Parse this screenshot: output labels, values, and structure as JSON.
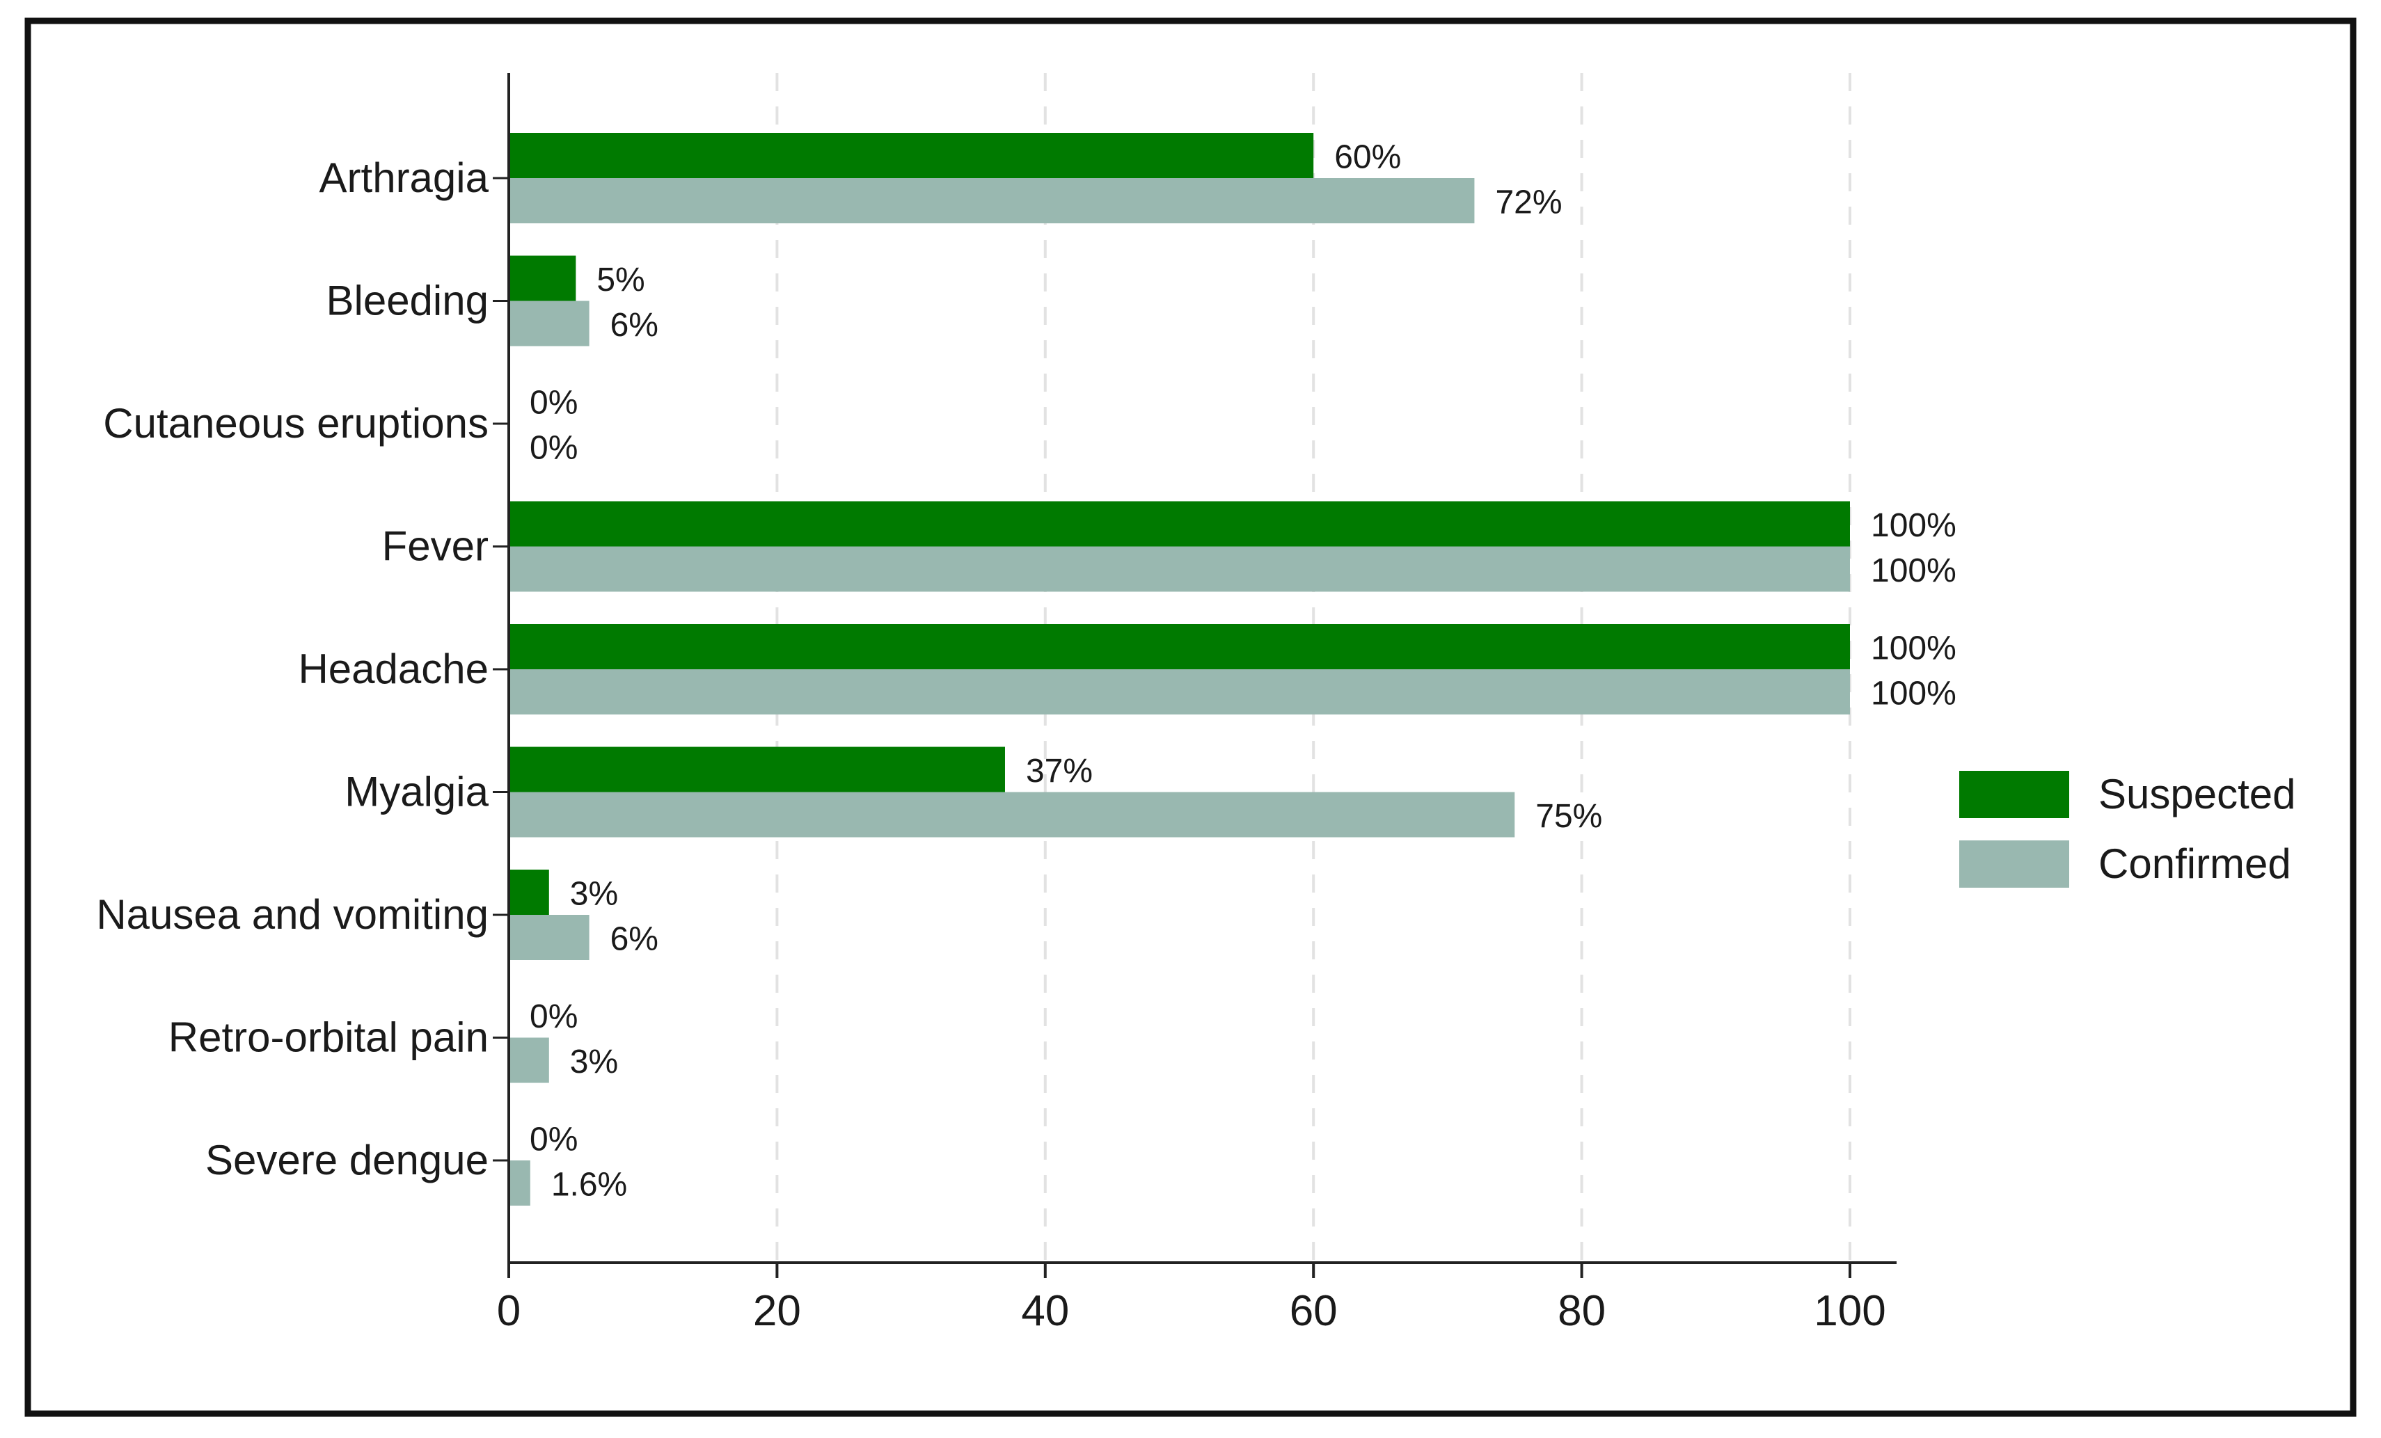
{
  "chart_data": {
    "type": "bar",
    "orientation": "horizontal",
    "categories": [
      "Arthragia",
      "Bleeding",
      "Cutaneous eruptions",
      "Fever",
      "Headache",
      "Myalgia",
      "Nausea and vomiting",
      "Retro-orbital pain",
      "Severe dengue"
    ],
    "series": [
      {
        "name": "Suspected",
        "color": "#007a00",
        "values": [
          60,
          5,
          0,
          100,
          100,
          37,
          3,
          0,
          0
        ],
        "labels": [
          "60%",
          "5%",
          "0%",
          "100%",
          "100%",
          "37%",
          "3%",
          "0%",
          "0%"
        ]
      },
      {
        "name": "Confirmed",
        "color": "#99b8b0",
        "values": [
          72,
          6,
          0,
          100,
          100,
          75,
          6,
          3,
          1.6
        ],
        "labels": [
          "72%",
          "6%",
          "0%",
          "100%",
          "100%",
          "75%",
          "6%",
          "3%",
          "1.6%"
        ]
      }
    ],
    "xlim": [
      0,
      100
    ],
    "xticks": [
      "0",
      "20",
      "40",
      "60",
      "80",
      "100"
    ],
    "xlabel": "",
    "ylabel": "",
    "grid": "vertical dashed",
    "legend": "right"
  }
}
